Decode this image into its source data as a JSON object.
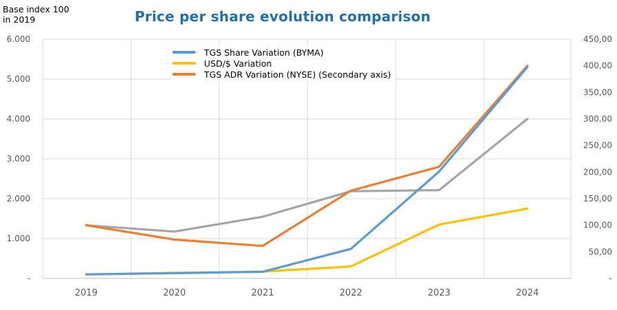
{
  "corner_note": [
    "Base index 100",
    "in 2019"
  ],
  "chart_data": {
    "type": "line",
    "title": "Price per share evolution comparison",
    "x": [
      "2019",
      "2020",
      "2021",
      "2022",
      "2023",
      "2024"
    ],
    "left_axis": {
      "ylim": [
        0,
        6000
      ],
      "ticks": [
        0,
        1000,
        2000,
        3000,
        4000,
        5000,
        6000
      ],
      "tick_labels": [
        "-",
        "1.000",
        "2.000",
        "3.000",
        "4.000",
        "5.000",
        "6.000"
      ]
    },
    "right_axis": {
      "ylim": [
        0,
        450
      ],
      "ticks": [
        0,
        50,
        100,
        150,
        200,
        250,
        300,
        350,
        400,
        450
      ],
      "tick_labels": [
        "-",
        "50,00",
        "100,00",
        "150,00",
        "200,00",
        "250,00",
        "300,00",
        "350,00",
        "400,00",
        "450,00"
      ]
    },
    "grid": true,
    "legend_position": "top-center",
    "series": [
      {
        "name": "TGS Share Variation (BYMA)",
        "axis": "left",
        "color": "#5b9bd5",
        "values": [
          100,
          130,
          165,
          740,
          2680,
          5300
        ]
      },
      {
        "name": "USD/$ Variation",
        "axis": "left",
        "color": "#ffc000",
        "values": [
          100,
          140,
          170,
          300,
          1350,
          1750
        ]
      },
      {
        "name": "TGS ADR Variation (NYSE) (Secondary axis)",
        "axis": "right",
        "color": "#ed7d31",
        "values": [
          100,
          73,
          61,
          165,
          210,
          400
        ]
      },
      {
        "name": "",
        "axis": "right",
        "color": "#a5a5a5",
        "values": [
          100,
          88,
          116,
          164,
          166,
          300
        ]
      }
    ]
  }
}
